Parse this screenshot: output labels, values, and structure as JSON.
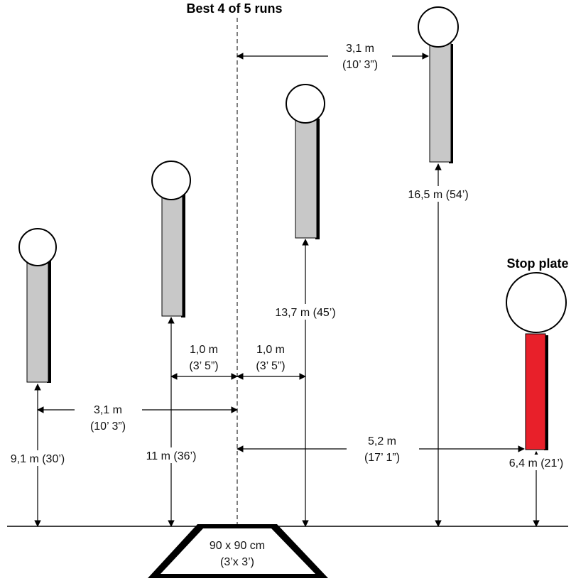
{
  "title": "Best 4 of 5 runs",
  "stop_plate_label": "Stop plate",
  "box": {
    "line1": "90 x 90 cm",
    "line2": "(3’x 3’)"
  },
  "targets": [
    {
      "distance": "9,1 m (30’)"
    },
    {
      "distance": "11 m (36’)"
    },
    {
      "distance": "13,7 m (45’)"
    },
    {
      "distance": "16,5 m (54’)"
    },
    {
      "distance": "6,4 m (21’)"
    }
  ],
  "spacings": {
    "left_outer": {
      "metric": "3,1 m",
      "imperial": "(10’ 3”)"
    },
    "left_inner": {
      "metric": "1,0 m",
      "imperial": "(3’ 5”)"
    },
    "right_inner": {
      "metric": "1,0 m",
      "imperial": "(3’ 5”)"
    },
    "right_top": {
      "metric": "3,1 m",
      "imperial": "(10’ 3”)"
    },
    "stop_plate": {
      "metric": "5,2 m",
      "imperial": "(17’ 1”)"
    }
  },
  "colors": {
    "post": "#c8c8c8",
    "stop_post": "#e8202a"
  }
}
